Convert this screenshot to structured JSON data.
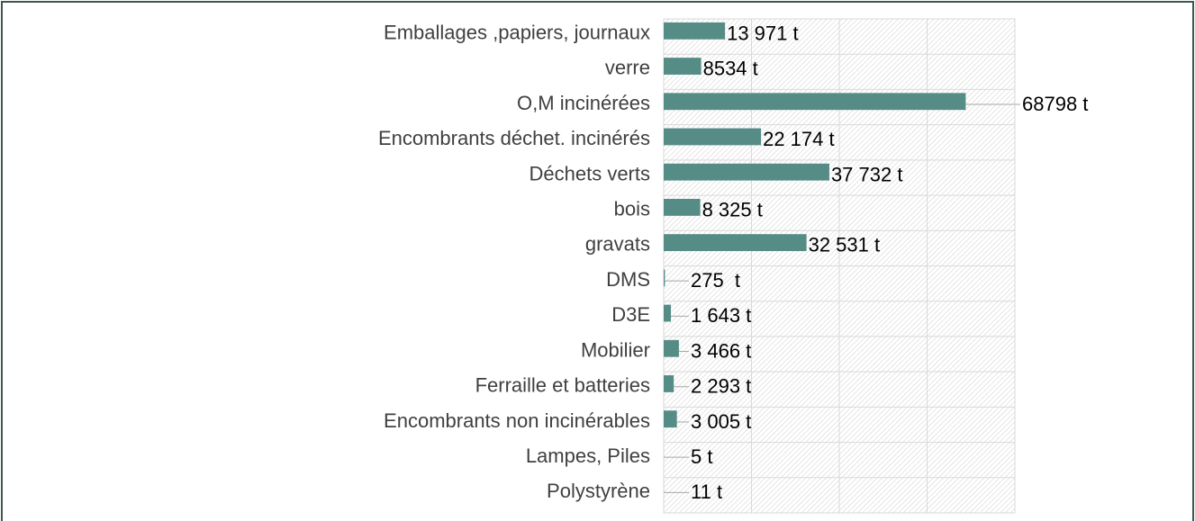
{
  "chart_data": {
    "type": "bar",
    "orientation": "horizontal",
    "categories": [
      "Emballages ,papiers, journaux",
      "verre",
      "O,M incinérées",
      "Encombrants déchet. incinérés",
      "Déchets verts",
      "bois",
      "gravats",
      "DMS",
      "D3E",
      "Mobilier",
      "Ferraille et batteries",
      "Encombrants non incinérables",
      "Lampes, Piles",
      "Polystyrène"
    ],
    "values": [
      13971,
      8534,
      68798,
      22174,
      37732,
      8325,
      32531,
      275,
      1643,
      3466,
      2293,
      3005,
      5,
      11
    ],
    "value_labels": [
      "13 971 t",
      "8534 t",
      "68798 t",
      "22 174 t",
      "37 732 t",
      "8 325 t",
      "32 531 t",
      "275  t",
      "1 643 t",
      "3 466 t",
      "2 293 t",
      "3 005 t",
      "5 t",
      "11 t"
    ],
    "color": "#568c86",
    "xlim": [
      0,
      80000
    ],
    "xticks": [
      0,
      20000,
      40000,
      60000,
      80000
    ],
    "grid": true
  }
}
